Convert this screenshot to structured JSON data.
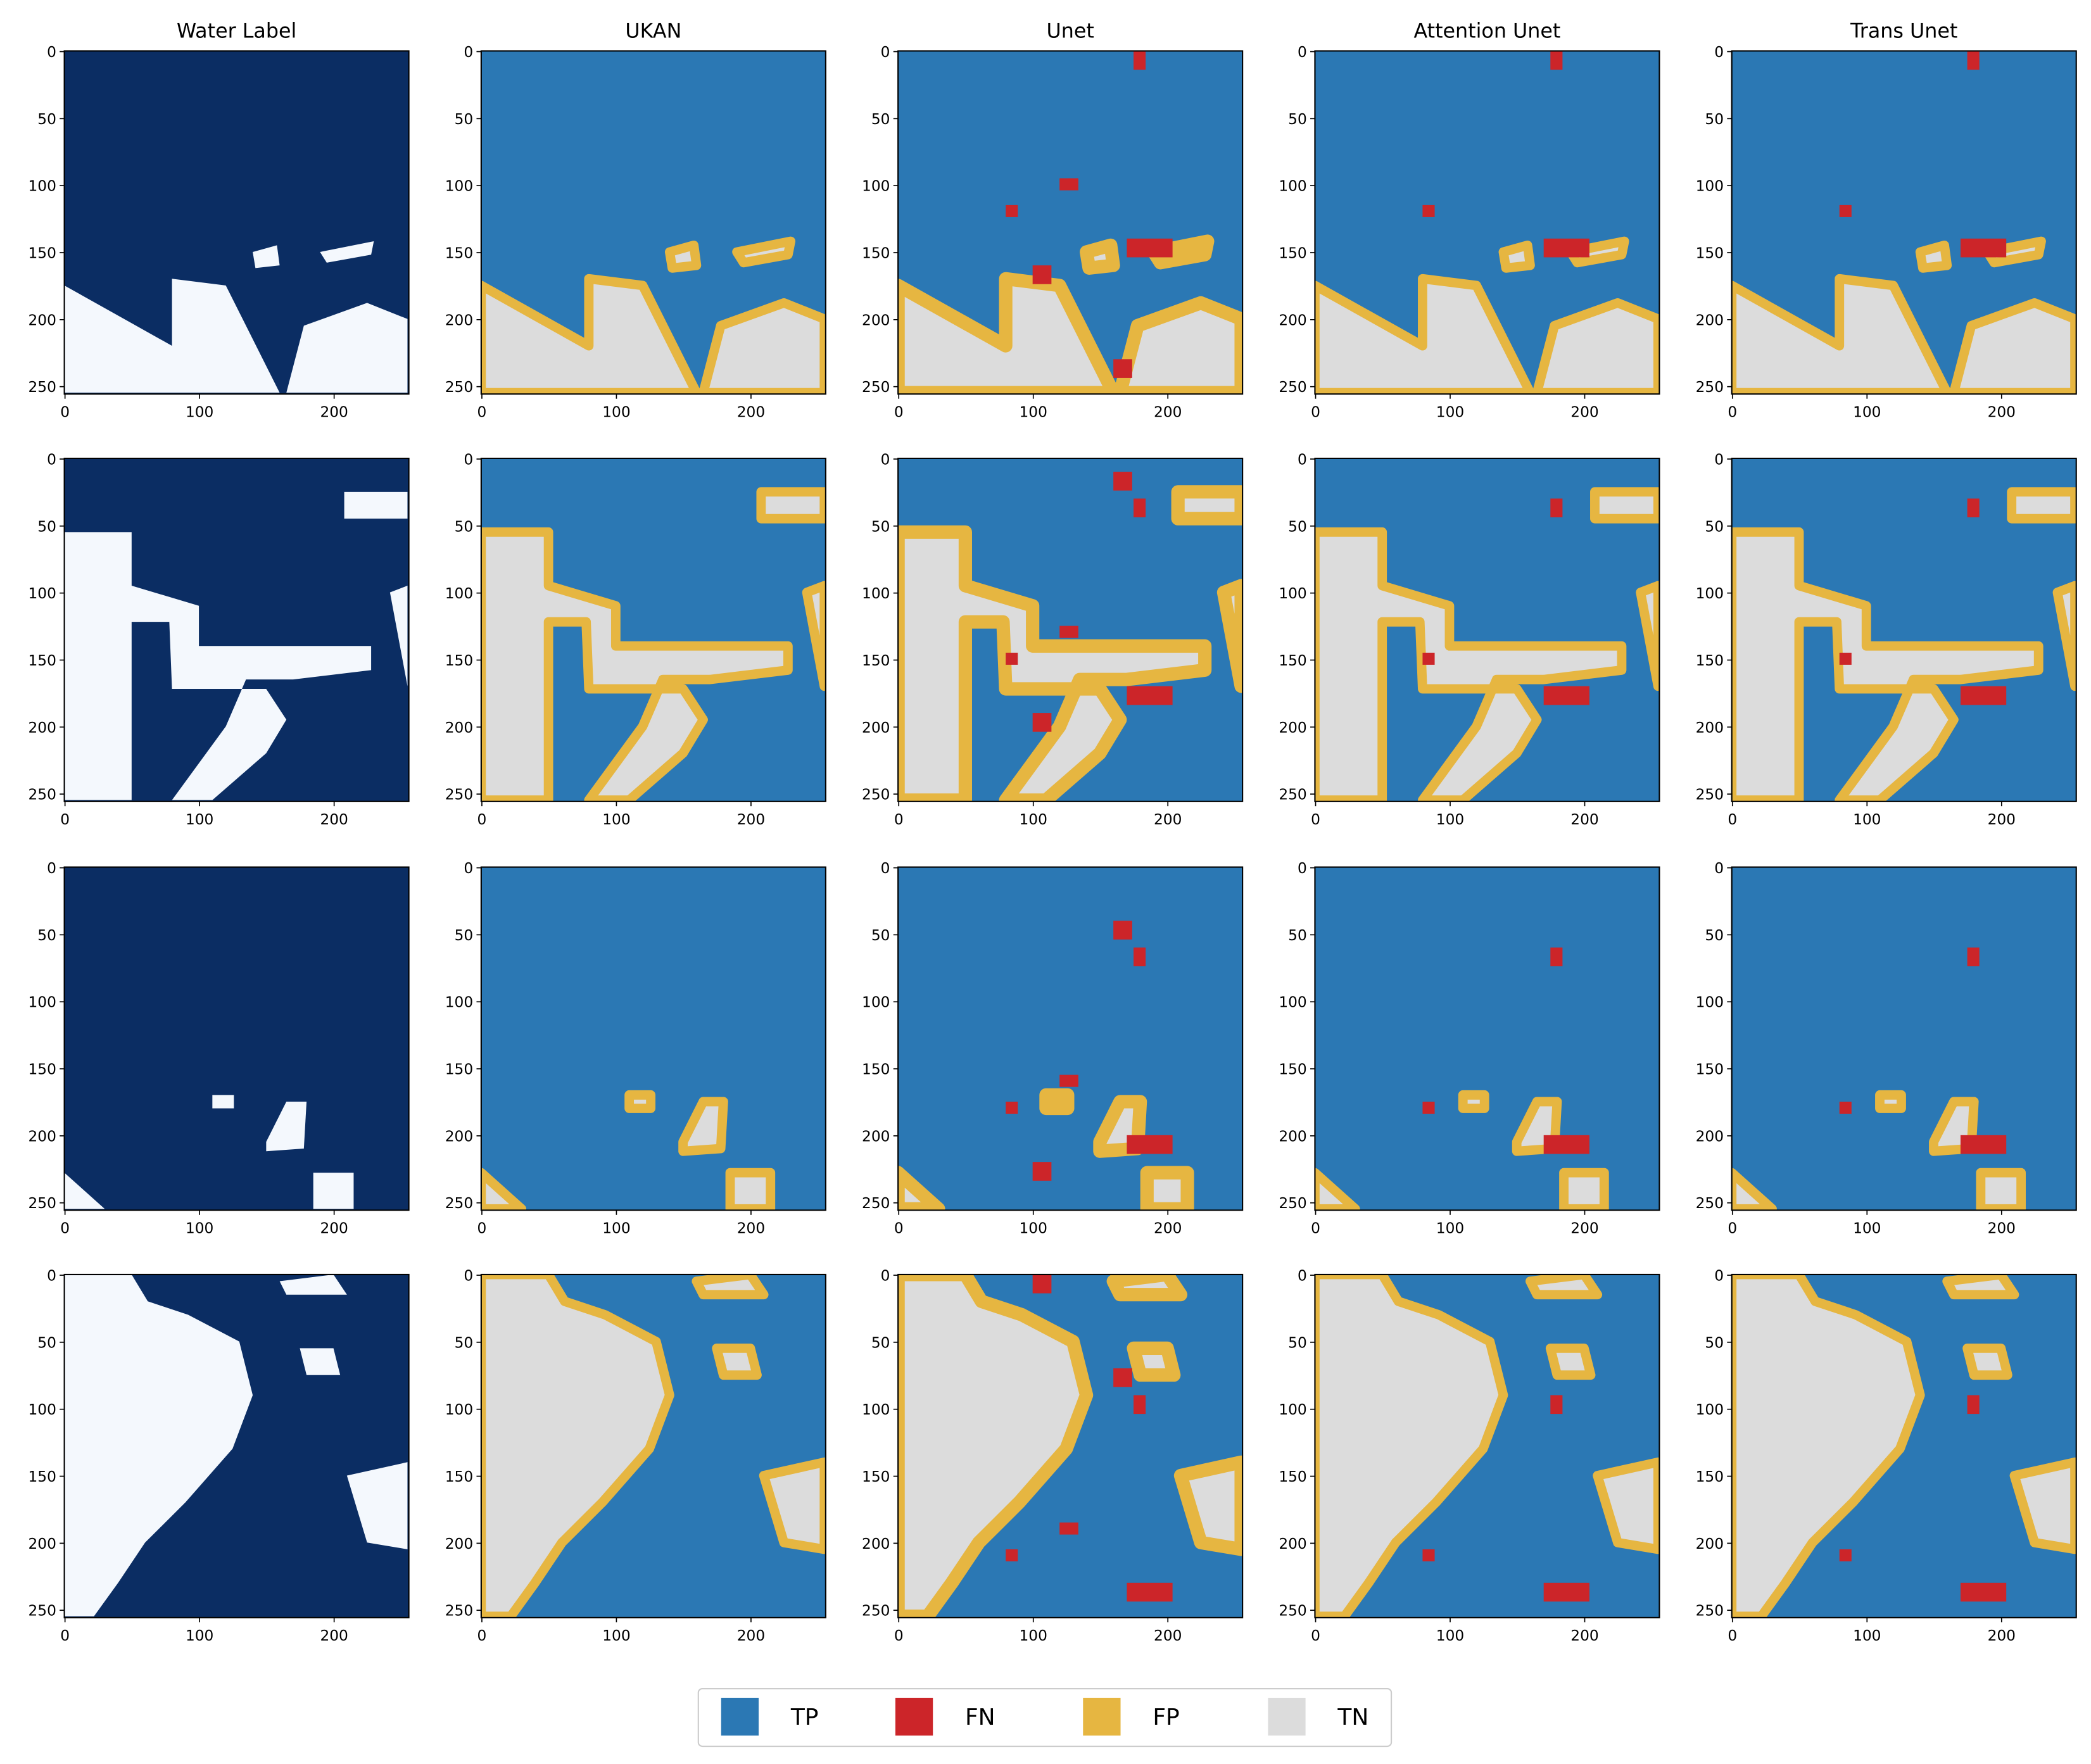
{
  "panels": {
    "titles": [
      "Water Label",
      "UKAN",
      "Unet",
      "Attention Unet",
      "Trans Unet"
    ],
    "xlim": [
      -0.5,
      255.5
    ],
    "ylim": [
      255.5,
      -0.5
    ],
    "xticks": [
      0,
      100,
      200
    ],
    "yticks": [
      0,
      50,
      100,
      150,
      200,
      250
    ]
  },
  "legend": [
    {
      "label": "TP",
      "color": "#2b78b4"
    },
    {
      "label": "FN",
      "color": "#cc2529"
    },
    {
      "label": "FP",
      "color": "#e6b641"
    },
    {
      "label": "TN",
      "color": "#dcdcdc"
    }
  ]
}
